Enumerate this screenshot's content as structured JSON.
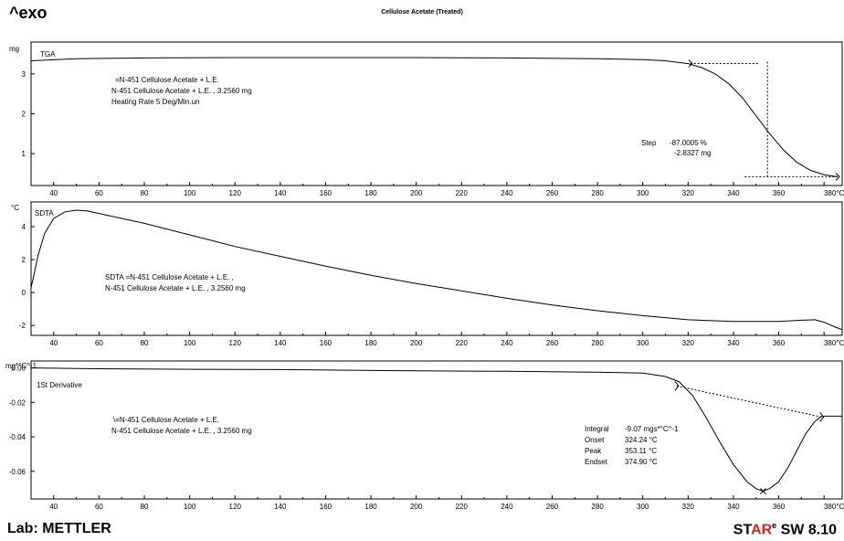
{
  "header": {
    "exo_label": "^exo",
    "title": "Cellulose Acetate (Treated)"
  },
  "footer": {
    "lab": "Lab: METTLER",
    "software_prefix": "ST",
    "software_accent": "AR",
    "software_suffix": " SW 8.10",
    "software_sup": "e"
  },
  "chart_data": [
    {
      "type": "line",
      "name": "tga",
      "unit_label": "mg",
      "curve_label": "TGA",
      "xlim": [
        30,
        388
      ],
      "ylim": [
        0.2,
        3.8
      ],
      "x_ticks": [
        40,
        60,
        80,
        100,
        120,
        140,
        160,
        180,
        200,
        220,
        240,
        260,
        280,
        300,
        320,
        340,
        360,
        380
      ],
      "x_last_suffix": "°C",
      "y_ticks": [
        1,
        2,
        3
      ],
      "annotations": [
        "=N-451 Cellulose Acetate + L.E.",
        "N-451 Cellulose Acetate + L.E. , 3.2560 mg",
        "Heating Rate 5 Deg/Min.un"
      ],
      "step": {
        "label": "Step",
        "percent": "-87.0005 %",
        "mass": "-2.8327 mg",
        "start_x": 321,
        "end_x": 386,
        "mid_x": 355,
        "start_y": 3.26,
        "end_y": 0.42
      },
      "x": [
        30,
        50,
        80,
        120,
        160,
        200,
        240,
        280,
        300,
        310,
        320,
        326,
        332,
        338,
        344,
        350,
        356,
        362,
        368,
        374,
        380,
        386
      ],
      "y": [
        3.33,
        3.38,
        3.4,
        3.41,
        3.41,
        3.41,
        3.4,
        3.38,
        3.36,
        3.33,
        3.26,
        3.16,
        3.0,
        2.75,
        2.4,
        1.95,
        1.5,
        1.1,
        0.78,
        0.58,
        0.47,
        0.42
      ]
    },
    {
      "type": "line",
      "name": "sdta",
      "unit_label": "°C",
      "curve_label": "SDTA",
      "xlim": [
        30,
        388
      ],
      "ylim": [
        -2.6,
        5.5
      ],
      "x_ticks": [
        40,
        60,
        80,
        100,
        120,
        140,
        160,
        180,
        200,
        220,
        240,
        260,
        280,
        300,
        320,
        340,
        360,
        380
      ],
      "x_last_suffix": "°C",
      "y_ticks": [
        -2,
        0,
        2,
        4
      ],
      "annotations": [
        "SDTA =N-451 Cellulose Acetate + L.E. ,",
        "N-451 Cellulose Acetate + L.E. , 3.2560 mg"
      ],
      "x": [
        30,
        31,
        33,
        36,
        40,
        45,
        50,
        55,
        60,
        70,
        80,
        100,
        120,
        140,
        160,
        180,
        200,
        220,
        240,
        260,
        280,
        300,
        320,
        340,
        360,
        370,
        376,
        380,
        385,
        388
      ],
      "y": [
        0.3,
        0.9,
        2.2,
        3.6,
        4.5,
        4.9,
        5.0,
        4.95,
        4.8,
        4.5,
        4.2,
        3.5,
        2.8,
        2.2,
        1.6,
        1.05,
        0.55,
        0.1,
        -0.35,
        -0.75,
        -1.1,
        -1.4,
        -1.65,
        -1.75,
        -1.75,
        -1.68,
        -1.65,
        -1.8,
        -2.1,
        -2.25
      ]
    },
    {
      "type": "line",
      "name": "derivative",
      "unit_label": "mg*°C^-1",
      "curve_label": "1St Derivative",
      "xlim": [
        30,
        388
      ],
      "ylim": [
        -0.076,
        0.004
      ],
      "x_ticks": [
        40,
        60,
        80,
        100,
        120,
        140,
        160,
        180,
        200,
        220,
        240,
        260,
        280,
        300,
        320,
        340,
        360,
        380
      ],
      "x_last_suffix": "°C",
      "y_ticks": [
        0.0,
        -0.02,
        -0.04,
        -0.06
      ],
      "y_tick_labels": [
        "0.00",
        "-0.02",
        "-0.04",
        "-0.06"
      ],
      "annotations": [
        "\\=N-451 Cellulose Acetate + L.E.",
        "N-451 Cellulose Acetate + L.E. , 3.2560 mg"
      ],
      "peak_results": [
        {
          "label": "Integral",
          "value": "-9.07 mgs*°C^-1"
        },
        {
          "label": "Onset",
          "value": "324.24 °C"
        },
        {
          "label": "Peak",
          "value": "353.11 °C"
        },
        {
          "label": "Endset",
          "value": "374.90 °C"
        }
      ],
      "baseline": {
        "x1": 315,
        "y1": -0.0105,
        "x2": 379,
        "y2": -0.0285
      },
      "peak_marker": {
        "x": 353.11,
        "y": -0.0715
      },
      "x": [
        30,
        60,
        100,
        140,
        180,
        200,
        240,
        280,
        300,
        310,
        316,
        322,
        328,
        334,
        340,
        346,
        350,
        353,
        356,
        360,
        364,
        368,
        372,
        376,
        379,
        382,
        388
      ],
      "y": [
        0.0,
        -0.0005,
        -0.0008,
        -0.001,
        -0.0015,
        -0.0017,
        -0.002,
        -0.0025,
        -0.003,
        -0.005,
        -0.008,
        -0.016,
        -0.029,
        -0.043,
        -0.056,
        -0.066,
        -0.07,
        -0.0715,
        -0.07,
        -0.066,
        -0.058,
        -0.048,
        -0.038,
        -0.031,
        -0.028,
        -0.028,
        -0.028
      ]
    }
  ]
}
